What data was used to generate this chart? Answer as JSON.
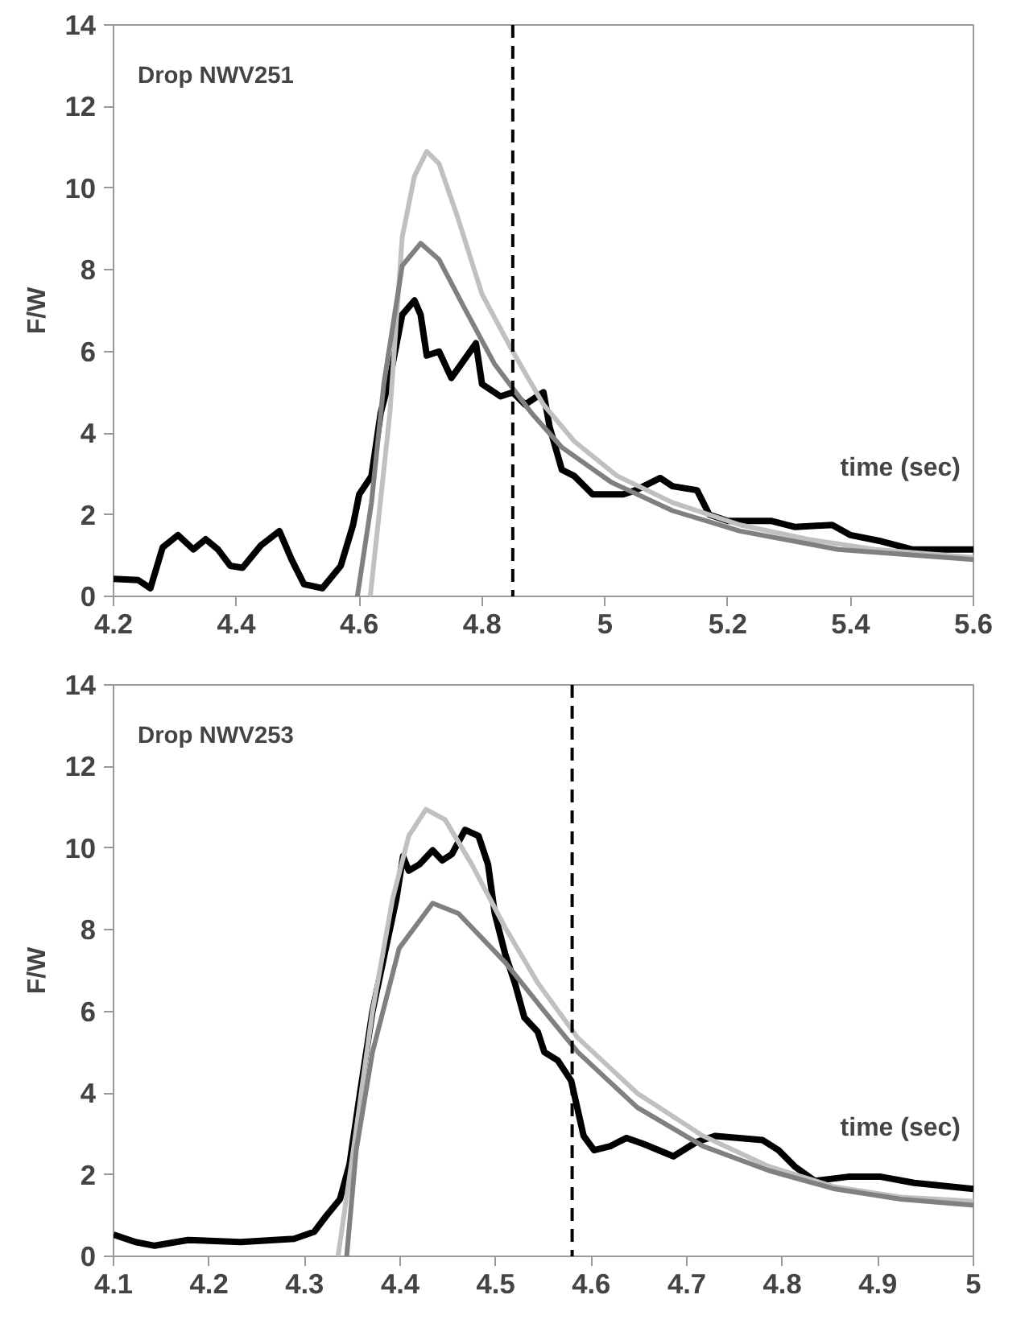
{
  "chart_data": [
    {
      "type": "line",
      "xlabel": "time (sec)",
      "ylabel": "F/W",
      "annotations": [
        "Drop NWV251"
      ],
      "xlim": [
        4.2,
        5.6
      ],
      "ylim": [
        0,
        14
      ],
      "xticks": [
        4.2,
        4.4,
        4.6,
        4.8,
        5,
        5.2,
        5.4,
        5.6
      ],
      "yticks": [
        0,
        2,
        4,
        6,
        8,
        10,
        12,
        14
      ],
      "grid": false,
      "marker": "none",
      "line_style": "solid",
      "ref_lines": [
        {
          "axis": "x",
          "value": 4.85,
          "color": "#000000",
          "line_style": "dashed"
        }
      ],
      "series": [
        {
          "color": "#000000",
          "x": [
            4.2,
            4.24,
            4.26,
            4.28,
            4.305,
            4.33,
            4.35,
            4.37,
            4.39,
            4.41,
            4.44,
            4.47,
            4.49,
            4.51,
            4.54,
            4.57,
            4.59,
            4.6,
            4.62,
            4.635,
            4.65,
            4.67,
            4.69,
            4.7,
            4.71,
            4.73,
            4.75,
            4.79,
            4.8,
            4.83,
            4.85,
            4.87,
            4.9,
            4.91,
            4.93,
            4.95,
            4.98,
            5.0,
            5.03,
            5.05,
            5.09,
            5.11,
            5.15,
            5.17,
            5.2,
            5.27,
            5.31,
            5.37,
            5.4,
            5.45,
            5.5,
            5.6
          ],
          "values": [
            0.43,
            0.4,
            0.2,
            1.2,
            1.5,
            1.15,
            1.4,
            1.15,
            0.75,
            0.7,
            1.25,
            1.6,
            0.9,
            0.3,
            0.2,
            0.75,
            1.75,
            2.5,
            2.95,
            4.5,
            5.35,
            6.9,
            7.25,
            6.9,
            5.9,
            6.0,
            5.35,
            6.2,
            5.2,
            4.9,
            5.0,
            4.7,
            5.0,
            4.15,
            3.1,
            2.95,
            2.5,
            2.5,
            2.5,
            2.6,
            2.9,
            2.7,
            2.6,
            2.0,
            1.85,
            1.85,
            1.7,
            1.75,
            1.5,
            1.35,
            1.15,
            1.15
          ]
        },
        {
          "color": "#c0c0c0",
          "x": [
            4.618,
            4.65,
            4.67,
            4.69,
            4.71,
            4.73,
            4.76,
            4.8,
            4.85,
            4.9,
            4.95,
            5.02,
            5.11,
            5.22,
            5.33,
            5.44,
            5.6
          ],
          "values": [
            0,
            4.5,
            8.8,
            10.3,
            10.9,
            10.6,
            9.3,
            7.4,
            6.0,
            4.7,
            3.8,
            2.95,
            2.3,
            1.75,
            1.4,
            1.15,
            0.95
          ]
        },
        {
          "color": "#808080",
          "x": [
            4.597,
            4.62,
            4.64,
            4.67,
            4.7,
            4.73,
            4.77,
            4.82,
            4.88,
            4.93,
            5.01,
            5.11,
            5.22,
            5.38,
            5.6
          ],
          "values": [
            0,
            2.3,
            5.2,
            8.1,
            8.65,
            8.25,
            7.1,
            5.7,
            4.5,
            3.65,
            2.8,
            2.1,
            1.6,
            1.15,
            0.9
          ]
        }
      ]
    },
    {
      "type": "line",
      "xlabel": "time (sec)",
      "ylabel": "F/W",
      "annotations": [
        "Drop NWV253"
      ],
      "xlim": [
        4.1,
        5
      ],
      "ylim": [
        0,
        14
      ],
      "xticks": [
        4.1,
        4.2,
        4.3,
        4.4,
        4.5,
        4.6,
        4.7,
        4.8,
        4.9,
        5
      ],
      "yticks": [
        0,
        2,
        4,
        6,
        8,
        10,
        12,
        14
      ],
      "grid": false,
      "marker": "none",
      "line_style": "solid",
      "ref_lines": [
        {
          "axis": "x",
          "value": 4.58,
          "color": "#000000",
          "line_style": "dashed"
        }
      ],
      "series": [
        {
          "color": "#000000",
          "x": [
            4.1,
            4.123,
            4.143,
            4.178,
            4.233,
            4.289,
            4.31,
            4.323,
            4.337,
            4.347,
            4.358,
            4.371,
            4.385,
            4.396,
            4.403,
            4.409,
            4.42,
            4.434,
            4.444,
            4.454,
            4.468,
            4.482,
            4.492,
            4.499,
            4.51,
            4.52,
            4.53,
            4.544,
            4.551,
            4.565,
            4.579,
            4.592,
            4.603,
            4.62,
            4.637,
            4.655,
            4.686,
            4.71,
            4.73,
            4.779,
            4.796,
            4.813,
            4.834,
            4.869,
            4.903,
            4.938,
            5.0
          ],
          "values": [
            0.53,
            0.35,
            0.26,
            0.4,
            0.35,
            0.43,
            0.6,
            1.0,
            1.4,
            2.25,
            4.0,
            6.0,
            7.55,
            8.75,
            9.8,
            9.45,
            9.6,
            9.95,
            9.7,
            9.85,
            10.45,
            10.3,
            9.6,
            8.4,
            7.4,
            6.7,
            5.85,
            5.5,
            5.0,
            4.8,
            4.3,
            2.95,
            2.6,
            2.7,
            2.9,
            2.75,
            2.45,
            2.8,
            2.95,
            2.85,
            2.6,
            2.2,
            1.85,
            1.95,
            1.95,
            1.8,
            1.65
          ]
        },
        {
          "color": "#c0c0c0",
          "x": [
            4.335,
            4.351,
            4.371,
            4.392,
            4.409,
            4.427,
            4.447,
            4.475,
            4.51,
            4.544,
            4.586,
            4.648,
            4.717,
            4.786,
            4.855,
            4.924,
            5.0
          ],
          "values": [
            0,
            2.6,
            6.0,
            8.75,
            10.3,
            10.95,
            10.7,
            9.6,
            8.05,
            6.7,
            5.35,
            4.0,
            2.95,
            2.2,
            1.7,
            1.45,
            1.35
          ]
        },
        {
          "color": "#808080",
          "x": [
            4.344,
            4.354,
            4.371,
            4.399,
            4.434,
            4.461,
            4.51,
            4.551,
            4.586,
            4.648,
            4.717,
            4.786,
            4.855,
            4.924,
            5.0
          ],
          "values": [
            0,
            2.6,
            5.0,
            7.55,
            8.65,
            8.4,
            7.2,
            6.0,
            5.0,
            3.65,
            2.7,
            2.1,
            1.65,
            1.4,
            1.25
          ]
        }
      ]
    }
  ]
}
